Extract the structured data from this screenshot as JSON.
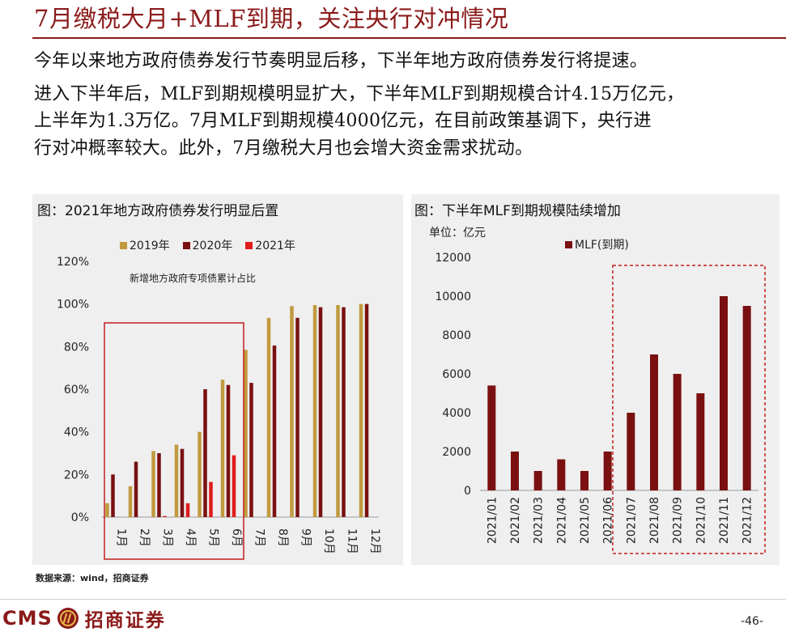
{
  "header": {
    "title": "7月缴税大月+MLF到期，关注央行对冲情况"
  },
  "body": {
    "lines": [
      "今年以来地方政府债券发行节奏明显后移，下半年地方政府债券发行将提速。",
      "进入下半年后，MLF到期规模明显扩大，下半年MLF到期规模合计4.15万亿元，",
      "上半年为1.3万亿。7月MLF到期规模4000亿元，在目前政策基调下，央行进",
      "行对冲概率较大。此外，7月缴税大月也会增大资金需求扰动。"
    ]
  },
  "colors": {
    "accent": "#8b1a1a",
    "bar_2019": "#c19a3f",
    "bar_2020": "#7a1010",
    "bar_2021": "#e01b1b",
    "highlight": "#c41e1e"
  },
  "left_chart": {
    "panel_title": "图：2021年地方政府债券发行明显后置",
    "note": "新增地方政府专项债累计占比"
  },
  "right_chart": {
    "panel_title": "图：下半年MLF到期规模陆续增加",
    "unit": "单位：亿元"
  },
  "chart_data": [
    {
      "type": "bar",
      "title": "图：2021年地方政府债券发行明显后置",
      "annotation": "新增地方政府专项债累计占比",
      "categories": [
        "1月",
        "2月",
        "3月",
        "4月",
        "5月",
        "6月",
        "7月",
        "8月",
        "9月",
        "10月",
        "11月",
        "12月"
      ],
      "series": [
        {
          "name": "2019年",
          "values": [
            6.5,
            14.5,
            31,
            34,
            40,
            64.5,
            78.5,
            93.5,
            99,
            99.5,
            99.5,
            100
          ]
        },
        {
          "name": "2020年",
          "values": [
            20,
            26,
            30,
            32,
            60,
            62,
            63,
            80.5,
            93.5,
            98.5,
            98.5,
            100
          ]
        },
        {
          "name": "2021年",
          "values": [
            0,
            0,
            0.5,
            6.5,
            16.5,
            29,
            null,
            null,
            null,
            null,
            null,
            null
          ]
        }
      ],
      "yticks": [
        "0%",
        "20%",
        "40%",
        "60%",
        "80%",
        "100%",
        "120%"
      ],
      "ylim": [
        0,
        120
      ],
      "legend_position": "top",
      "highlight_categories": [
        "1月",
        "6月"
      ]
    },
    {
      "type": "bar",
      "title": "图：下半年MLF到期规模陆续增加",
      "unit": "单位：亿元",
      "categories": [
        "2021/01",
        "2021/02",
        "2021/03",
        "2021/04",
        "2021/05",
        "2021/06",
        "2021/07",
        "2021/08",
        "2021/09",
        "2021/10",
        "2021/11",
        "2021/12"
      ],
      "series": [
        {
          "name": "MLF(到期)",
          "values": [
            5400,
            2000,
            1000,
            1600,
            1000,
            2000,
            4000,
            7000,
            6000,
            5000,
            10000,
            9500
          ]
        }
      ],
      "yticks": [
        "0",
        "2000",
        "4000",
        "6000",
        "8000",
        "10000",
        "12000"
      ],
      "ylim": [
        0,
        12000
      ],
      "legend_position": "top",
      "highlight_categories": [
        "2021/07",
        "2021/12"
      ]
    }
  ],
  "footer": {
    "source": "数据来源：wind，招商证券",
    "logo_text": "CMS",
    "logo_cn": "招商证券",
    "page_number": "-46-"
  }
}
